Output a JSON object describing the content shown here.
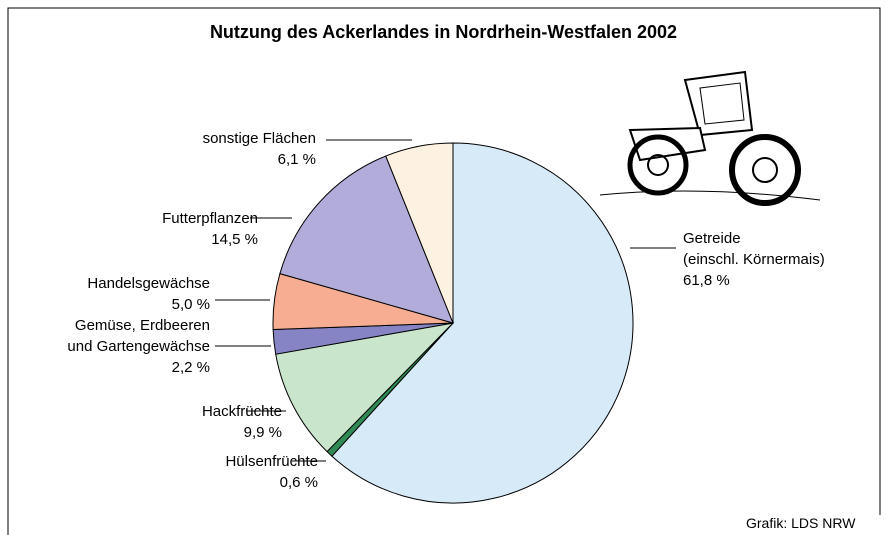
{
  "chart_data": {
    "type": "pie",
    "title": "Nutzung des Ackerlandes in Nordrhein-Westfalen 2002",
    "categories": [
      "Getreide\n(einschl. Körnermais)",
      "Hülsenfrüchte",
      "Hackfrüchte",
      "Gemüse, Erdbeeren\nund Gartengewächse",
      "Handelsgewächse",
      "Futterpflanzen",
      "sonstige Flächen"
    ],
    "values": [
      61.8,
      0.6,
      9.9,
      2.2,
      5.0,
      14.5,
      6.1
    ],
    "value_labels": [
      "61,8 %",
      "0,6 %",
      "9,9 %",
      "2,2 %",
      "5,0 %",
      "14,5 %",
      "6,1 %"
    ],
    "colors": [
      "#d6eaf8",
      "#2f8a55",
      "#c9e6cd",
      "#8784c6",
      "#f6ad92",
      "#b1acd9",
      "#fdf1e1"
    ],
    "source": "Grafik: LDS NRW"
  }
}
